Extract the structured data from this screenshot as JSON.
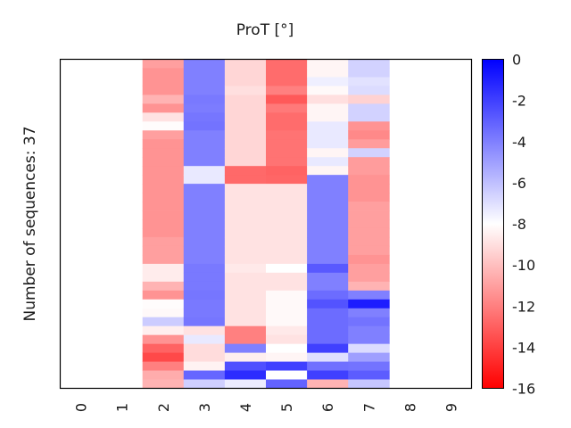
{
  "chart_data": {
    "type": "heatmap",
    "title": "ProT [°]",
    "ylabel": "Number of sequences: 37",
    "xlabel": "",
    "x_categories": [
      "0",
      "1",
      "2",
      "3",
      "4",
      "5",
      "6",
      "7",
      "8",
      "9"
    ],
    "n_rows": 37,
    "colormap": "bwr",
    "colormap_colors": {
      "low": "#ff0000",
      "mid": "#ffffff",
      "high": "#0000ff"
    },
    "vmin": -16,
    "vmax": 0,
    "colorbar_ticks": [
      "0",
      "-2",
      "-4",
      "-6",
      "-8",
      "-10",
      "-12",
      "-14",
      "-16"
    ],
    "colorbar_tick_values": [
      0,
      -2,
      -4,
      -6,
      -8,
      -10,
      -12,
      -14,
      -16
    ],
    "columns_empty": [
      "0",
      "1",
      "8",
      "9"
    ],
    "column_values": {
      "2": [
        -11.0,
        -11.4,
        -11.4,
        -11.4,
        -10.4,
        -11.4,
        -8.9,
        -8.1,
        -11.0,
        -11.4,
        -11.4,
        -11.4,
        -11.4,
        -11.4,
        -11.4,
        -11.4,
        -11.4,
        -11.4,
        -11.4,
        -11.4,
        -11.0,
        -11.0,
        -11.0,
        -8.6,
        -8.6,
        -10.4,
        -11.4,
        -8.1,
        -8.2,
        -6.4,
        -8.5,
        -11.4,
        -12.9,
        -13.7,
        -12.0,
        -10.6,
        -10.4
      ],
      "3": [
        -4.0,
        -4.0,
        -4.0,
        -4.0,
        -3.8,
        -3.9,
        -3.7,
        -3.6,
        -4.0,
        -4.0,
        -4.0,
        -4.0,
        -7.3,
        -7.3,
        -4.0,
        -4.0,
        -4.0,
        -4.0,
        -4.0,
        -4.0,
        -4.0,
        -4.0,
        -4.0,
        -3.8,
        -3.8,
        -3.8,
        -3.7,
        -3.8,
        -3.8,
        -3.7,
        -8.9,
        -7.3,
        -9.1,
        -9.1,
        -8.4,
        -3.2,
        -6.5
      ],
      "4": [
        -9.3,
        -9.3,
        -9.3,
        -9.0,
        -9.3,
        -9.3,
        -9.3,
        -9.3,
        -9.3,
        -9.3,
        -9.3,
        -9.3,
        -12.7,
        -12.7,
        -8.9,
        -8.9,
        -8.9,
        -8.9,
        -8.9,
        -8.9,
        -8.9,
        -8.9,
        -8.9,
        -8.7,
        -8.9,
        -8.9,
        -8.9,
        -8.9,
        -8.9,
        -8.9,
        -12.0,
        -12.0,
        -4.0,
        -8.5,
        -2.5,
        -1.4,
        -7.4
      ],
      "5": [
        -12.6,
        -12.6,
        -12.6,
        -12.0,
        -13.2,
        -12.2,
        -12.6,
        -12.6,
        -12.4,
        -12.4,
        -12.4,
        -12.4,
        -12.9,
        -12.8,
        -8.9,
        -8.9,
        -8.9,
        -8.9,
        -8.9,
        -8.9,
        -8.9,
        -8.9,
        -8.9,
        -8.0,
        -8.9,
        -8.9,
        -8.2,
        -8.2,
        -8.2,
        -8.2,
        -8.7,
        -8.9,
        -8.0,
        -8.3,
        -2.0,
        -8.0,
        -3.1
      ],
      "6": [
        -8.3,
        -8.3,
        -7.5,
        -8.2,
        -9.0,
        -8.3,
        -8.3,
        -7.3,
        -7.3,
        -7.3,
        -8.3,
        -7.3,
        -8.3,
        -4.0,
        -4.0,
        -4.0,
        -4.0,
        -4.0,
        -4.0,
        -4.0,
        -4.0,
        -4.0,
        -4.0,
        -2.8,
        -4.0,
        -4.0,
        -3.4,
        -2.6,
        -3.4,
        -3.4,
        -3.4,
        -3.4,
        -2.0,
        -7.0,
        -3.5,
        -2.0,
        -10.4
      ],
      "7": [
        -6.6,
        -6.6,
        -7.1,
        -6.9,
        -9.4,
        -6.6,
        -6.6,
        -11.4,
        -11.7,
        -11.1,
        -6.6,
        -11.1,
        -11.1,
        -11.4,
        -11.4,
        -11.4,
        -11.0,
        -11.0,
        -11.0,
        -11.0,
        -11.0,
        -11.0,
        -11.4,
        -11.0,
        -11.0,
        -10.4,
        -4.0,
        -0.9,
        -4.0,
        -3.6,
        -4.0,
        -4.0,
        -6.9,
        -5.0,
        -3.6,
        -2.9,
        -6.2
      ]
    }
  }
}
